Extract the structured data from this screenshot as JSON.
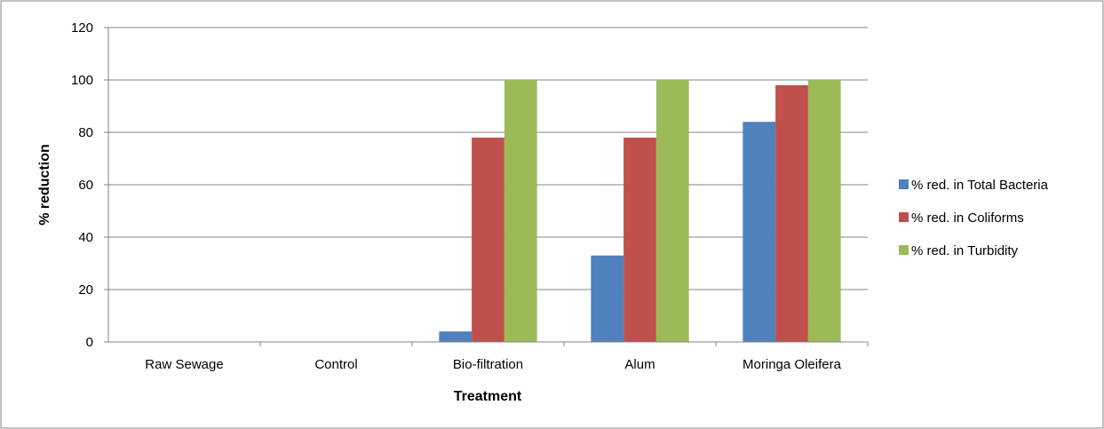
{
  "chart_data": {
    "type": "bar",
    "title": "",
    "xlabel": "Treatment",
    "ylabel": "% reduction",
    "ylim": [
      0,
      120
    ],
    "yticks": [
      0,
      20,
      40,
      60,
      80,
      100,
      120
    ],
    "grid": true,
    "legend_position": "right",
    "categories": [
      "Raw Sewage",
      "Control",
      "Bio-filtration",
      "Alum",
      "Moringa Oleifera"
    ],
    "series": [
      {
        "name": "% red. in Total Bacteria",
        "color": "#4F81BD",
        "values": [
          0,
          0,
          4,
          33,
          84
        ]
      },
      {
        "name": "% red. in Coliforms",
        "color": "#C0504D",
        "values": [
          0,
          0,
          78,
          78,
          98
        ]
      },
      {
        "name": "% red. in Turbidity",
        "color": "#9BBB59",
        "values": [
          0,
          0,
          100,
          100,
          100
        ]
      }
    ]
  }
}
